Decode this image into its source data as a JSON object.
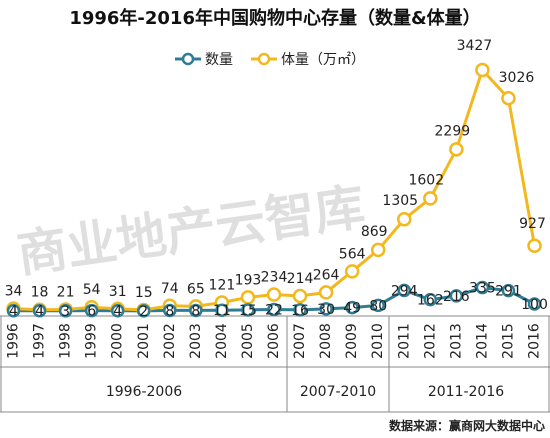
{
  "chart_data": {
    "type": "line",
    "title": "1996年-2016年中国购物中心存量（数量&体量）",
    "categories": [
      "1996",
      "1997",
      "1998",
      "1999",
      "2000",
      "2001",
      "2002",
      "2003",
      "2004",
      "2005",
      "2006",
      "2007",
      "2008",
      "2009",
      "2010",
      "2011",
      "2012",
      "2013",
      "2014",
      "2015",
      "2016"
    ],
    "series": [
      {
        "name": "数量",
        "color": "#2f7c95",
        "values": [
          4,
          4,
          3,
          6,
          4,
          2,
          8,
          8,
          11,
          15,
          22,
          16,
          30,
          49,
          80,
          294,
          162,
          216,
          335,
          291,
          100
        ]
      },
      {
        "name": "体量（万㎡）",
        "color": "#f2b81d",
        "values": [
          34,
          18,
          21,
          54,
          31,
          15,
          74,
          65,
          121,
          193,
          234,
          214,
          264,
          564,
          869,
          1305,
          1602,
          2299,
          3427,
          3026,
          927
        ]
      }
    ],
    "period_groups": [
      {
        "label": "1996-2006"
      },
      {
        "label": "2007-2010"
      },
      {
        "label": "2011-2016"
      }
    ],
    "source_text": "数据来源：赢商网大数据中心",
    "watermark_text": "商业地产云智库"
  }
}
